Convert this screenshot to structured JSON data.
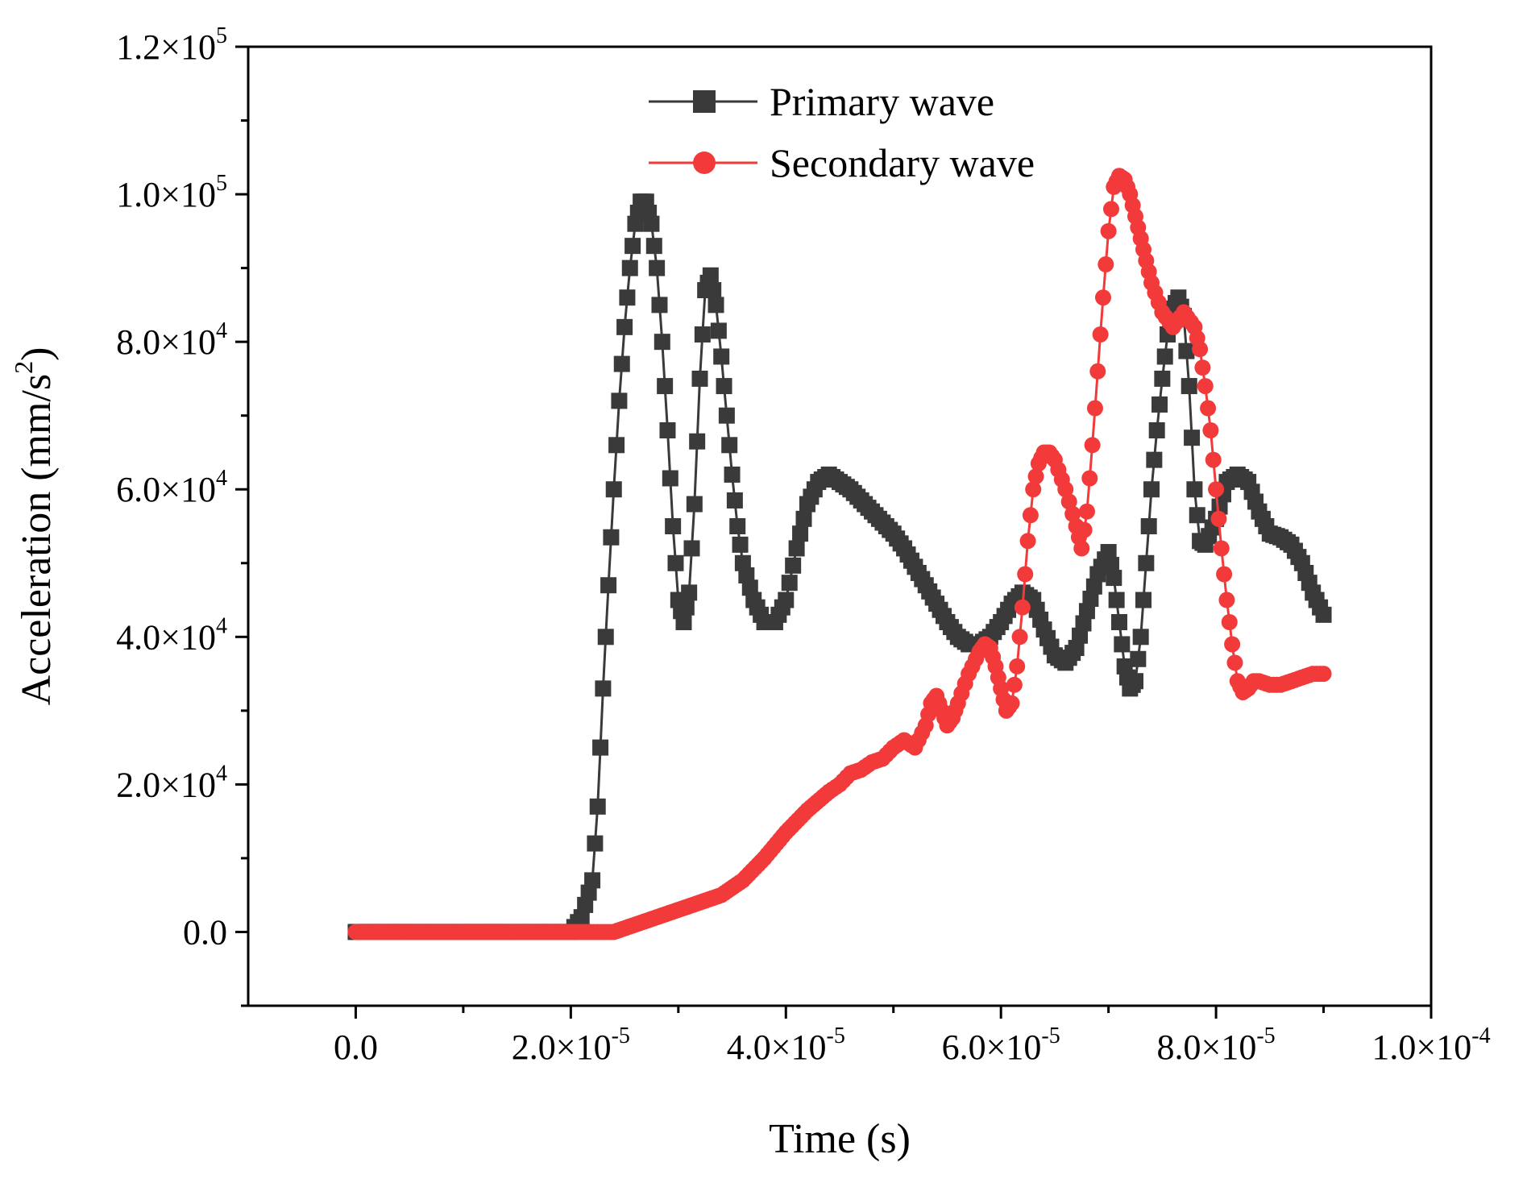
{
  "chart_data": {
    "type": "line",
    "title": "",
    "xlabel": "Time (s)",
    "ylabel": {
      "prefix": "Acceleration (mm/s",
      "sup": "2",
      "suffix": ")"
    },
    "xlim": [
      -1e-05,
      0.0001
    ],
    "ylim": [
      -10000,
      120000
    ],
    "x_ticks": [
      {
        "value": 0,
        "mant": "0.0",
        "exp": ""
      },
      {
        "value": 2e-05,
        "mant": "2.0×10",
        "exp": "-5"
      },
      {
        "value": 4e-05,
        "mant": "4.0×10",
        "exp": "-5"
      },
      {
        "value": 6e-05,
        "mant": "6.0×10",
        "exp": "-5"
      },
      {
        "value": 8e-05,
        "mant": "8.0×10",
        "exp": "-5"
      },
      {
        "value": 0.0001,
        "mant": "1.0×10",
        "exp": "-4"
      }
    ],
    "y_ticks": [
      {
        "value": 0,
        "mant": "0.0",
        "exp": ""
      },
      {
        "value": 20000,
        "mant": "2.0×10",
        "exp": "4"
      },
      {
        "value": 40000,
        "mant": "4.0×10",
        "exp": "4"
      },
      {
        "value": 60000,
        "mant": "6.0×10",
        "exp": "4"
      },
      {
        "value": 80000,
        "mant": "8.0×10",
        "exp": "4"
      },
      {
        "value": 100000,
        "mant": "1.0×10",
        "exp": "5"
      },
      {
        "value": 120000,
        "mant": "1.2×10",
        "exp": "5"
      }
    ],
    "legend_position": "top-center",
    "series": [
      {
        "name": "Primary wave",
        "color": "#3a3a3a",
        "marker": "square",
        "x": [
          0,
          5e-06,
          1e-05,
          1.5e-05,
          2e-05,
          2.1e-05,
          2.2e-05,
          2.25e-05,
          2.3e-05,
          2.35e-05,
          2.4e-05,
          2.45e-05,
          2.5e-05,
          2.55e-05,
          2.6e-05,
          2.65e-05,
          2.7e-05,
          2.75e-05,
          2.8e-05,
          2.85e-05,
          2.9e-05,
          2.95e-05,
          3e-05,
          3.05e-05,
          3.1e-05,
          3.15e-05,
          3.2e-05,
          3.25e-05,
          3.3e-05,
          3.35e-05,
          3.4e-05,
          3.45e-05,
          3.5e-05,
          3.55e-05,
          3.6e-05,
          3.7e-05,
          3.8e-05,
          3.9e-05,
          4e-05,
          4.1e-05,
          4.2e-05,
          4.3e-05,
          4.4e-05,
          4.5e-05,
          4.6e-05,
          4.7e-05,
          4.8e-05,
          4.9e-05,
          5e-05,
          5.1e-05,
          5.2e-05,
          5.3e-05,
          5.4e-05,
          5.5e-05,
          5.6e-05,
          5.7e-05,
          5.8e-05,
          5.9e-05,
          6e-05,
          6.1e-05,
          6.2e-05,
          6.3e-05,
          6.4e-05,
          6.5e-05,
          6.6e-05,
          6.7e-05,
          6.8e-05,
          6.9e-05,
          7e-05,
          7.05e-05,
          7.1e-05,
          7.15e-05,
          7.2e-05,
          7.25e-05,
          7.3e-05,
          7.35e-05,
          7.4e-05,
          7.45e-05,
          7.5e-05,
          7.55e-05,
          7.6e-05,
          7.65e-05,
          7.7e-05,
          7.75e-05,
          7.8e-05,
          7.85e-05,
          7.9e-05,
          8e-05,
          8.1e-05,
          8.2e-05,
          8.3e-05,
          8.4e-05,
          8.5e-05,
          8.6e-05,
          8.7e-05,
          8.8e-05,
          8.9e-05,
          9e-05
        ],
        "y": [
          0,
          0,
          0,
          0,
          0,
          2000,
          7000,
          17000,
          33000,
          47000,
          60000,
          72000,
          82000,
          90000,
          96000,
          99000,
          99000,
          96000,
          90000,
          80000,
          68000,
          55000,
          45000,
          42000,
          46000,
          58000,
          75000,
          87000,
          89000,
          85000,
          78000,
          70000,
          62000,
          55000,
          50000,
          45000,
          42000,
          42000,
          45000,
          52000,
          58000,
          61000,
          62000,
          61000,
          60000,
          58500,
          57000,
          55500,
          54000,
          52000,
          49500,
          47000,
          44500,
          42000,
          40000,
          39000,
          39000,
          40000,
          42000,
          44500,
          46000,
          45000,
          41000,
          37500,
          36500,
          38500,
          43500,
          48500,
          51500,
          48000,
          42000,
          36000,
          33000,
          34000,
          40000,
          50000,
          60000,
          68000,
          75000,
          81000,
          84500,
          86000,
          83500,
          74000,
          60000,
          53000,
          52500,
          56000,
          61000,
          62000,
          61000,
          57000,
          54000,
          53500,
          52500,
          50000,
          46000,
          43000
        ]
      },
      {
        "name": "Secondary wave",
        "color": "#f23a3a",
        "marker": "circle",
        "x": [
          0,
          5e-06,
          1e-05,
          1.5e-05,
          2e-05,
          2.4e-05,
          2.6e-05,
          2.8e-05,
          3e-05,
          3.2e-05,
          3.4e-05,
          3.6e-05,
          3.8e-05,
          4e-05,
          4.2e-05,
          4.4e-05,
          4.5e-05,
          4.6e-05,
          4.7e-05,
          4.8e-05,
          4.9e-05,
          5e-05,
          5.1e-05,
          5.2e-05,
          5.3e-05,
          5.35e-05,
          5.4e-05,
          5.45e-05,
          5.5e-05,
          5.55e-05,
          5.6e-05,
          5.7e-05,
          5.8e-05,
          5.85e-05,
          5.9e-05,
          5.95e-05,
          6e-05,
          6.05e-05,
          6.1e-05,
          6.15e-05,
          6.2e-05,
          6.25e-05,
          6.3e-05,
          6.35e-05,
          6.4e-05,
          6.45e-05,
          6.5e-05,
          6.6e-05,
          6.7e-05,
          6.75e-05,
          6.8e-05,
          6.85e-05,
          6.9e-05,
          6.95e-05,
          7e-05,
          7.05e-05,
          7.1e-05,
          7.15e-05,
          7.2e-05,
          7.25e-05,
          7.3e-05,
          7.35e-05,
          7.4e-05,
          7.5e-05,
          7.6e-05,
          7.7e-05,
          7.8e-05,
          7.85e-05,
          7.9e-05,
          7.95e-05,
          8e-05,
          8.05e-05,
          8.1e-05,
          8.15e-05,
          8.2e-05,
          8.25e-05,
          8.3e-05,
          8.35e-05,
          8.4e-05,
          8.5e-05,
          8.6e-05,
          8.7e-05,
          8.8e-05,
          8.9e-05,
          9e-05
        ],
        "y": [
          0,
          0,
          0,
          0,
          0,
          0,
          1000,
          2000,
          3000,
          4000,
          5000,
          7000,
          10000,
          13500,
          16500,
          19000,
          20000,
          21500,
          22000,
          23000,
          23500,
          25000,
          26000,
          25000,
          28000,
          31000,
          32000,
          30000,
          28000,
          29000,
          31000,
          35000,
          38000,
          39000,
          38500,
          36000,
          33000,
          30000,
          31000,
          36000,
          44000,
          53000,
          60000,
          63500,
          65000,
          65000,
          64000,
          60000,
          55000,
          52000,
          57000,
          66000,
          76000,
          86000,
          95000,
          101000,
          102500,
          102000,
          100000,
          97000,
          94000,
          91000,
          88000,
          84000,
          82000,
          84000,
          82000,
          79000,
          74000,
          68000,
          60000,
          52000,
          45000,
          39000,
          34000,
          32500,
          33000,
          34000,
          34000,
          33500,
          33500,
          34000,
          34500,
          35000,
          35000
        ]
      }
    ]
  }
}
